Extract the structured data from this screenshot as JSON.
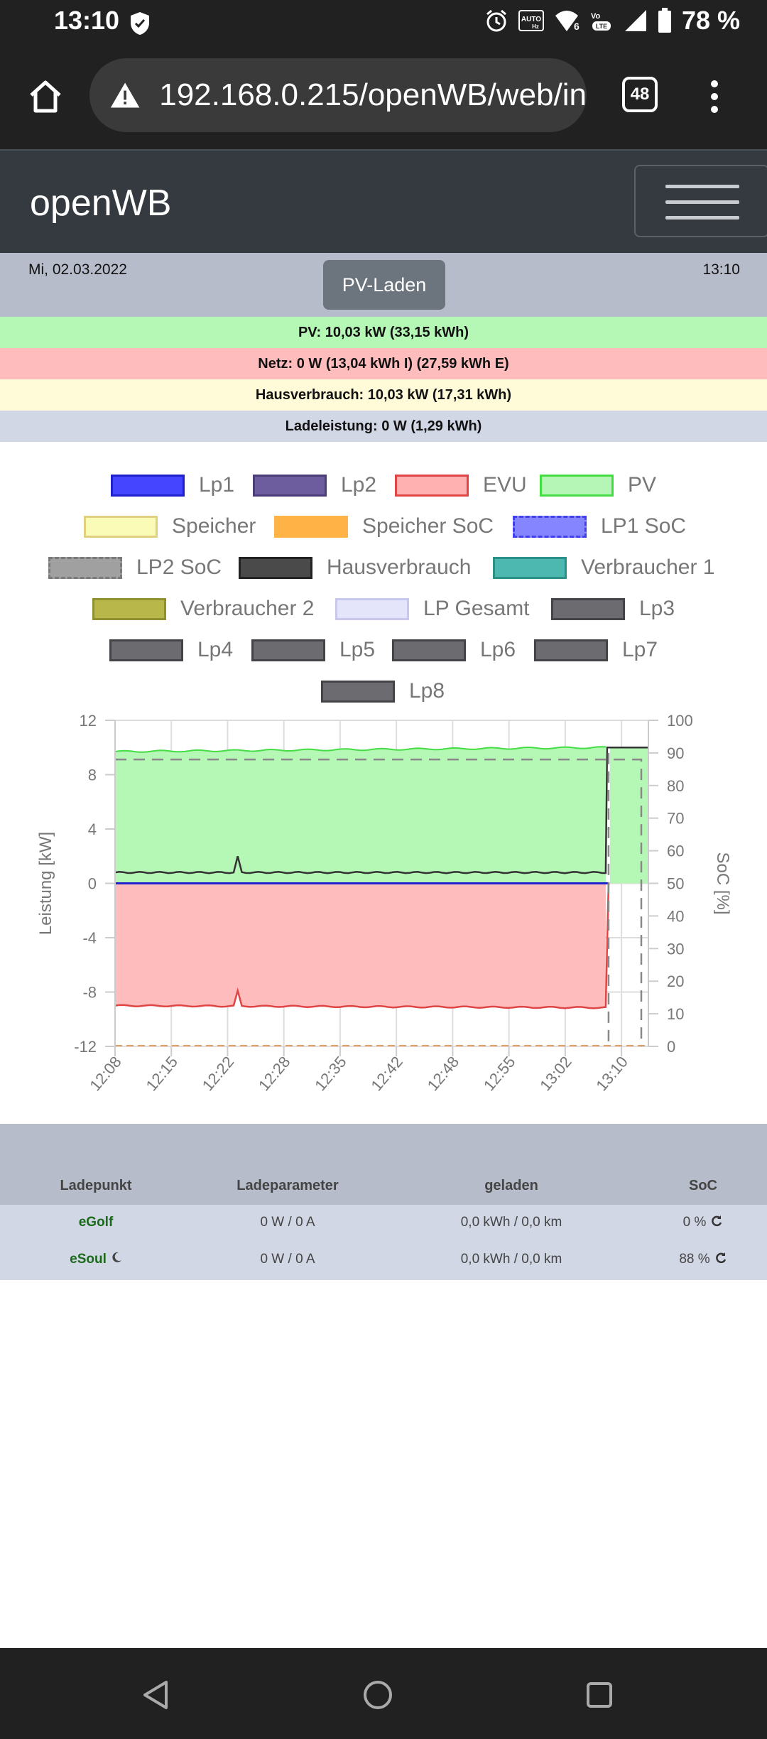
{
  "status_bar": {
    "time": "13:10",
    "battery": "78 %"
  },
  "browser": {
    "url": "192.168.0.215/openWB/web/in",
    "tabs_count": "48"
  },
  "navbar": {
    "brand": "openWB"
  },
  "info": {
    "date": "Mi, 02.03.2022",
    "time": "13:10",
    "mode_button": "PV-Laden"
  },
  "summary": {
    "pv": "PV: 10,03 kW (33,15 kWh)",
    "netz": "Netz: 0 W (13,04 kWh I) (27,59 kWh E)",
    "haus": "Hausverbrauch: 10,03 kW (17,31 kWh)",
    "lade": "Ladeleistung: 0 W (1,29 kWh)"
  },
  "colors": {
    "pv_bar": "#b5f7b5",
    "netz_bar": "#ffbcbc",
    "haus_bar": "#fffbd9",
    "lade_bar": "#d2d7e6"
  },
  "legend": [
    {
      "label": "Lp1",
      "color": "#4545ff",
      "border": "#2020cc"
    },
    {
      "label": "Lp2",
      "color": "#6d5d9e",
      "border": "#4a3d78"
    },
    {
      "label": "EVU",
      "color": "#ffb0b0",
      "border": "#e04545"
    },
    {
      "label": "PV",
      "color": "#b5f5b5",
      "border": "#44dd44"
    },
    {
      "label": "Speicher",
      "color": "#fbfbb8",
      "border": "#e0d080"
    },
    {
      "label": "Speicher SoC",
      "color": "#ffb347",
      "border": "#ffb347"
    },
    {
      "label": "LP1 SoC",
      "color": "#8585ff",
      "border": "#4040ee"
    },
    {
      "label": "LP2 SoC",
      "color": "#a0a0a0",
      "border": "#7a7a7a"
    },
    {
      "label": "Hausverbrauch",
      "color": "#4a4a4a",
      "border": "#222222"
    },
    {
      "label": "Verbraucher 1",
      "color": "#4db8b0",
      "border": "#2a9088"
    },
    {
      "label": "Verbraucher 2",
      "color": "#b8b84a",
      "border": "#909030"
    },
    {
      "label": "LP Gesamt",
      "color": "#e4e4fa",
      "border": "#c8c8ee"
    },
    {
      "label": "Lp3",
      "color": "#6b6b70",
      "border": "#444448"
    },
    {
      "label": "Lp4",
      "color": "#6b6b70",
      "border": "#444448"
    },
    {
      "label": "Lp5",
      "color": "#6b6b70",
      "border": "#444448"
    },
    {
      "label": "Lp6",
      "color": "#6b6b70",
      "border": "#444448"
    },
    {
      "label": "Lp7",
      "color": "#6b6b70",
      "border": "#444448"
    },
    {
      "label": "Lp8",
      "color": "#6b6b70",
      "border": "#444448"
    }
  ],
  "chart_data": {
    "type": "line",
    "ylabel": "Leistung [kW]",
    "y2label": "SoC [%]",
    "ylim": [
      -12,
      12
    ],
    "y2lim": [
      0,
      100
    ],
    "yticks": [
      "12",
      "8",
      "4",
      "0",
      "-4",
      "-8",
      "-12"
    ],
    "y2ticks": [
      "100",
      "90",
      "80",
      "70",
      "60",
      "50",
      "40",
      "30",
      "20",
      "10",
      "0"
    ],
    "xticks": [
      "12:08",
      "12:15",
      "12:22",
      "12:28",
      "12:35",
      "12:42",
      "12:48",
      "12:55",
      "13:02",
      "13:10"
    ],
    "grid": true,
    "series": [
      {
        "name": "PV",
        "color": "#44dd44",
        "approx_value_kw": 9.9
      },
      {
        "name": "EVU",
        "color": "#e04545",
        "approx_value_kw": -9.0
      },
      {
        "name": "Hausverbrauch",
        "color": "#333333",
        "approx_value_kw": 0.8
      },
      {
        "name": "Lp1",
        "color": "#2020cc",
        "approx_value_kw": 0
      },
      {
        "name": "LP2 SoC",
        "color": "#888888",
        "approx_value_pct": 88
      }
    ]
  },
  "table": {
    "headers": [
      "Ladepunkt",
      "Ladeparameter",
      "geladen",
      "SoC"
    ],
    "rows": [
      {
        "name": "eGolf",
        "param": "0 W / 0 A",
        "charged": "0,0 kWh / 0,0 km",
        "soc": "0 %"
      },
      {
        "name": "eSoul",
        "param": "0 W / 0 A",
        "charged": "0,0 kWh / 0,0 km",
        "soc": "88 %"
      }
    ]
  }
}
